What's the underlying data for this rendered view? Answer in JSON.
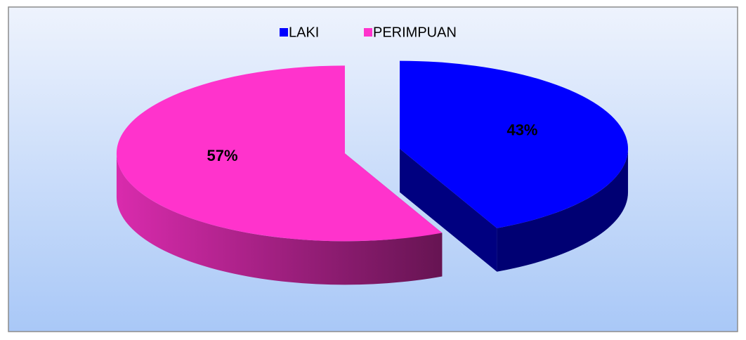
{
  "chart_data": {
    "type": "pie",
    "categories": [
      "LAKI",
      "PERIMPUAN"
    ],
    "values": [
      43,
      57
    ],
    "value_labels": [
      "43%",
      "57%"
    ],
    "colors": [
      "#0000ff",
      "#ff33cc"
    ],
    "legend": "top",
    "three_d": true,
    "exploded": true
  }
}
